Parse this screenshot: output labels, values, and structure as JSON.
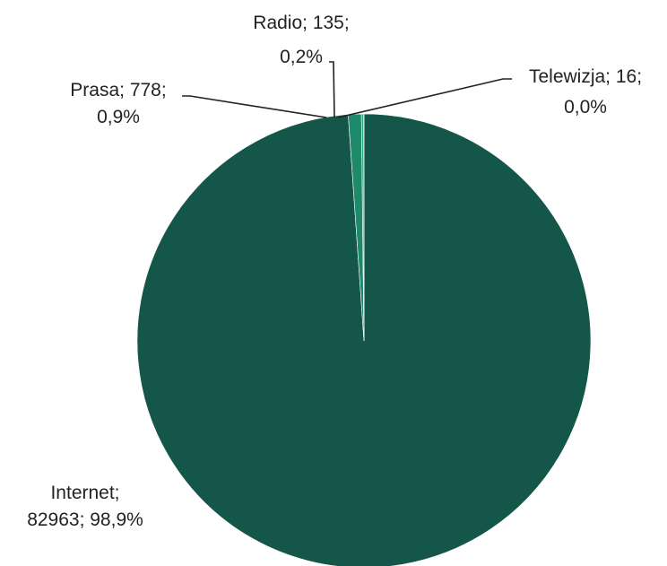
{
  "chart_data": {
    "type": "pie",
    "categories": [
      "Internet",
      "Prasa",
      "Radio",
      "Telewizja"
    ],
    "values": [
      82963,
      778,
      135,
      16
    ],
    "percentages": [
      "98,9%",
      "0,9%",
      "0,2%",
      "0,0%"
    ],
    "colors": [
      "#14564A",
      "#1F8A6B",
      "#2AA781",
      "#3FC49A"
    ],
    "data_labels": [
      {
        "line1": "Internet;",
        "line2": "82963; 98,9%"
      },
      {
        "line1": "Prasa; 778;",
        "line2": "0,9%"
      },
      {
        "line1": "Radio; 135;",
        "line2": "0,2%"
      },
      {
        "line1": "Telewizja; 16;",
        "line2": "0,0%"
      }
    ],
    "legend": "none"
  }
}
